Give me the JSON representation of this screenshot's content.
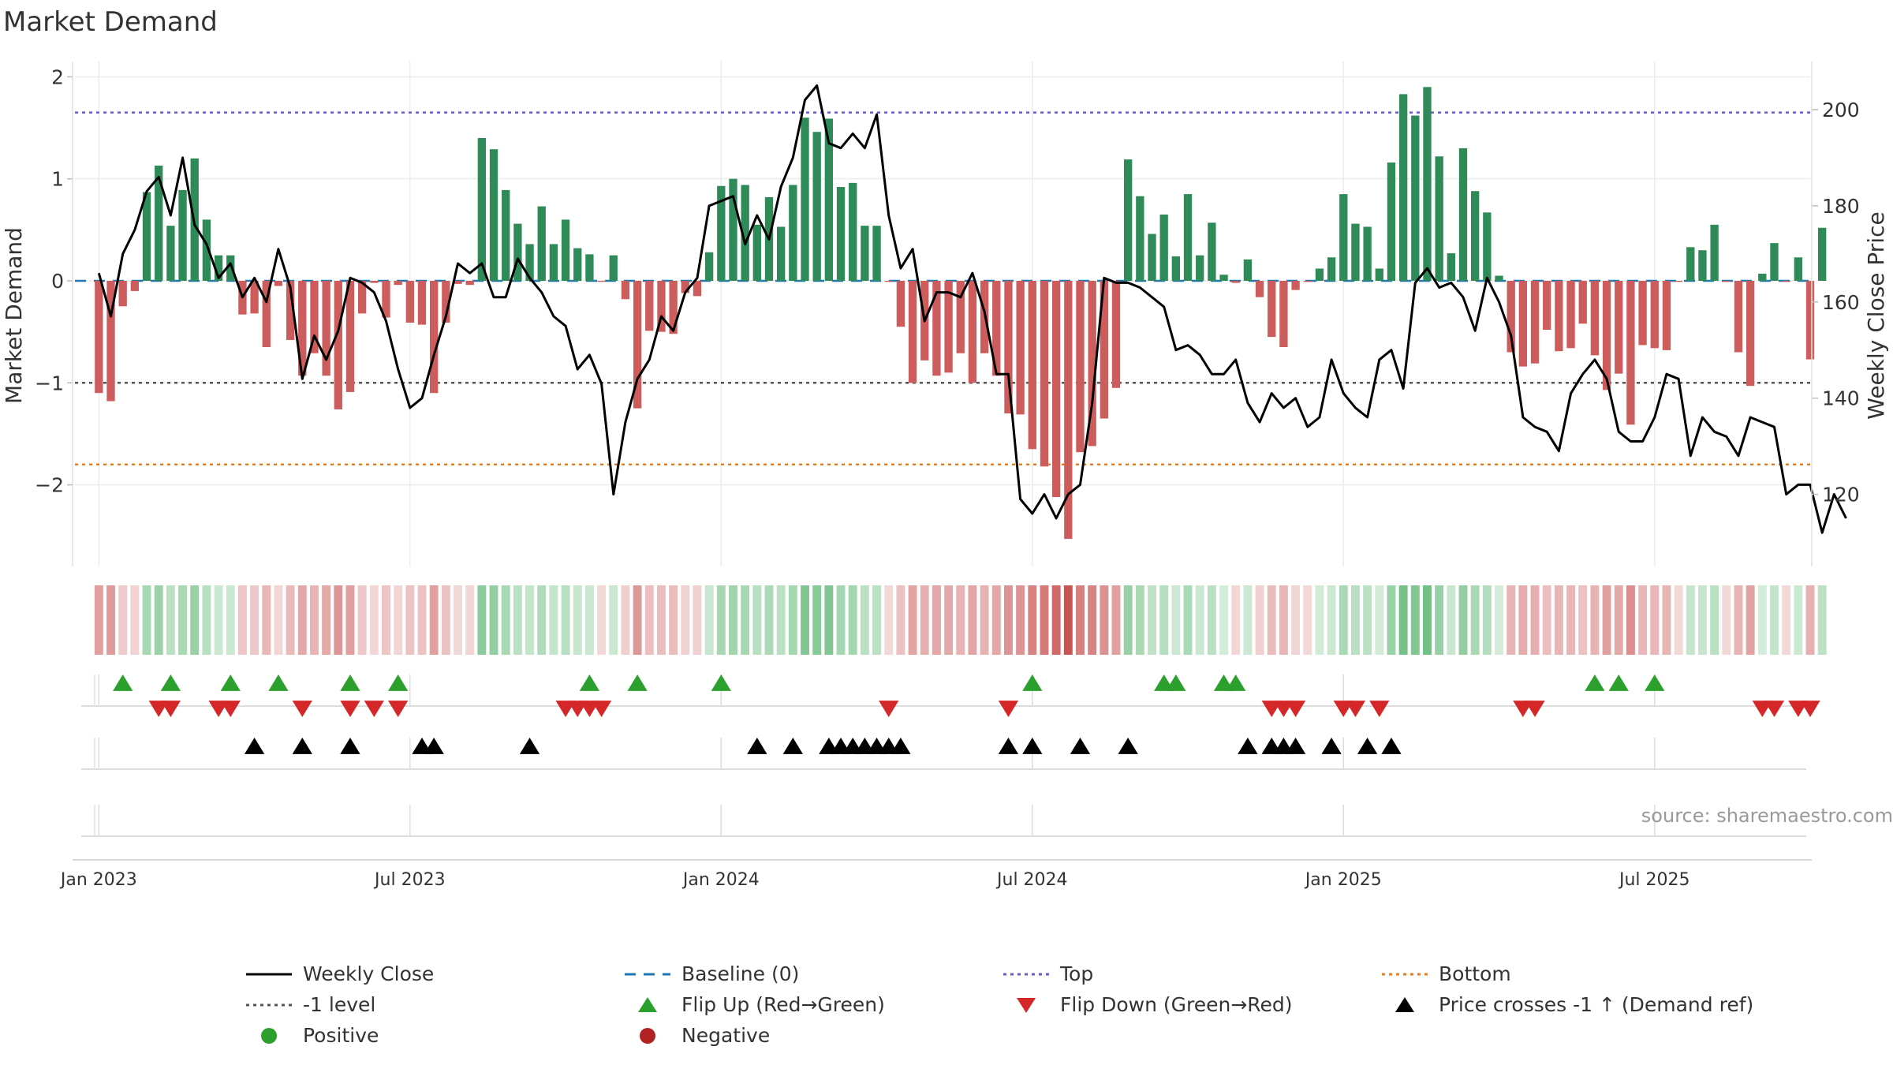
{
  "title": "Market Demand",
  "source": "source: sharemaestro.com",
  "colors": {
    "pos_bar": "#2e8b57",
    "neg_bar": "#cd5c5c",
    "close": "#000000",
    "baseline": "#1f77b4",
    "top": "#6a5acd",
    "bottom": "#e67e22",
    "minus1": "#555555",
    "flip_up": "#2ca02c",
    "flip_down": "#d62728",
    "cross": "#000000",
    "positive": "#2ca02c",
    "negative": "#b22222"
  },
  "chart_data": {
    "type": "bar+line",
    "title": "Market Demand",
    "ylabel": "Market Demand",
    "y2label": "Weekly Close Price",
    "ylim": [
      -2.8,
      2.15
    ],
    "y2lim": [
      105,
      210
    ],
    "yticks": [
      2,
      1,
      0,
      -1,
      -2
    ],
    "ytick_labels": [
      "2",
      "1",
      "0",
      "−1",
      "−2"
    ],
    "y2ticks": [
      200,
      180,
      160,
      140,
      120
    ],
    "xlim": [
      -2,
      143
    ],
    "xticks": [
      0,
      26,
      52,
      78,
      104,
      130
    ],
    "xtick_labels": [
      "Jan 2023",
      "Jul 2023",
      "Jan 2024",
      "Jul 2024",
      "Jan 2025",
      "Jul 2025"
    ],
    "ref_lines": {
      "top": 1.65,
      "bottom": -1.8,
      "minus1": -1.0,
      "baseline": 0
    },
    "demand": [
      -1.1,
      -1.18,
      -0.25,
      -0.1,
      0.87,
      1.13,
      0.54,
      0.89,
      1.2,
      0.6,
      0.25,
      0.25,
      -0.33,
      -0.32,
      -0.65,
      -0.05,
      -0.58,
      -0.93,
      -0.71,
      -0.93,
      -1.26,
      -1.09,
      -0.32,
      -0.02,
      -0.36,
      -0.04,
      -0.41,
      -0.43,
      -1.1,
      -0.41,
      -0.03,
      -0.04,
      1.4,
      1.29,
      0.89,
      0.56,
      0.36,
      0.73,
      0.36,
      0.6,
      0.32,
      0.26,
      -0.01,
      0.25,
      -0.18,
      -1.25,
      -0.49,
      -0.5,
      -0.52,
      -0.12,
      -0.15,
      0.28,
      0.93,
      1.0,
      0.94,
      0.55,
      0.82,
      0.53,
      0.94,
      1.6,
      1.46,
      1.59,
      0.92,
      0.96,
      0.54,
      0.54,
      -0.01,
      -0.45,
      -1.0,
      -0.78,
      -0.93,
      -0.9,
      -0.71,
      -1.0,
      -0.71,
      -0.93,
      -1.3,
      -1.31,
      -1.65,
      -1.82,
      -2.12,
      -2.53,
      -1.68,
      -1.62,
      -1.35,
      -1.05,
      1.19,
      0.83,
      0.46,
      0.65,
      0.24,
      0.85,
      0.25,
      0.57,
      0.06,
      -0.02,
      0.21,
      -0.16,
      -0.55,
      -0.65,
      -0.09,
      -0.01,
      0.12,
      0.23,
      0.85,
      0.56,
      0.53,
      0.12,
      1.16,
      1.83,
      1.62,
      1.9,
      1.22,
      0.27,
      1.3,
      0.88,
      0.67,
      0.05,
      -0.7,
      -0.84,
      -0.81,
      -0.48,
      -0.69,
      -0.66,
      -0.42,
      -0.73,
      -1.07,
      -0.91,
      -1.41,
      -0.63,
      -0.66,
      -0.68,
      -0.01,
      0.33,
      0.3,
      0.55,
      -0.01,
      -0.7,
      -1.03,
      0.07,
      0.37,
      -0.01,
      0.23,
      -0.77,
      0.52
    ],
    "close": [
      166,
      157,
      170,
      175,
      183,
      186,
      178,
      190,
      176,
      172,
      165,
      168,
      161,
      165,
      160,
      171,
      163,
      144,
      153,
      148,
      154,
      165,
      164,
      162,
      156,
      146,
      138,
      140,
      149,
      157,
      168,
      166,
      168,
      161,
      161,
      169,
      165,
      162,
      157,
      155,
      146,
      149,
      143,
      120,
      135,
      144,
      148,
      157,
      154,
      162,
      165,
      180,
      181,
      182,
      172,
      178,
      173,
      184,
      190,
      202,
      205,
      193,
      192,
      195,
      192,
      199,
      178,
      167,
      171,
      156,
      162,
      162,
      161,
      166,
      158,
      145,
      145,
      119,
      116,
      120,
      115,
      120,
      122,
      139,
      165,
      164,
      164,
      163,
      161,
      159,
      150,
      151,
      149,
      145,
      145,
      148,
      139,
      135,
      141,
      138,
      140,
      134,
      136,
      148,
      141,
      138,
      136,
      148,
      150,
      142,
      164,
      167,
      163,
      164,
      161,
      154,
      165,
      160,
      153,
      136,
      134,
      133,
      129,
      141,
      145,
      148,
      144,
      133,
      131,
      131,
      136,
      145,
      144,
      128,
      136,
      133,
      132,
      128,
      136,
      135,
      134,
      120,
      122,
      122,
      112,
      120,
      115
    ],
    "flip_up": [
      2,
      6,
      11,
      15,
      21,
      25,
      41,
      45,
      52,
      78,
      89,
      90,
      94,
      95,
      125,
      127,
      130
    ],
    "flip_down": [
      5,
      6,
      10,
      11,
      17,
      21,
      23,
      25,
      39,
      40,
      41,
      42,
      66,
      76,
      98,
      99,
      100,
      104,
      105,
      107,
      119,
      120,
      139,
      140,
      142,
      143
    ],
    "price_cross_up": [
      13,
      17,
      21,
      27,
      28,
      36,
      55,
      58,
      61,
      62,
      63,
      64,
      65,
      66,
      67,
      76,
      78,
      82,
      86,
      96,
      98,
      99,
      100,
      103,
      106,
      108
    ],
    "positive_markers": [],
    "negative_markers": []
  },
  "axis": {
    "y_label": "Market Demand",
    "y2_label": "Weekly Close Price",
    "ticks_left": [
      "2",
      "1",
      "0",
      "−1",
      "−2"
    ],
    "ticks_right": [
      "200",
      "180",
      "160",
      "140",
      "120"
    ],
    "ticks_x": [
      "Jan 2023",
      "Jul 2023",
      "Jan 2024",
      "Jul 2024",
      "Jan 2025",
      "Jul 2025"
    ]
  },
  "legend": {
    "weekly_close": "Weekly Close",
    "baseline": "Baseline (0)",
    "top": "Top",
    "bottom": "Bottom",
    "minus1": "-1 level",
    "flip_up": "Flip Up (Red→Green)",
    "flip_down": "Flip Down (Green→Red)",
    "price_cross": "Price crosses -1 ↑ (Demand ref)",
    "positive": "Positive",
    "negative": "Negative"
  }
}
